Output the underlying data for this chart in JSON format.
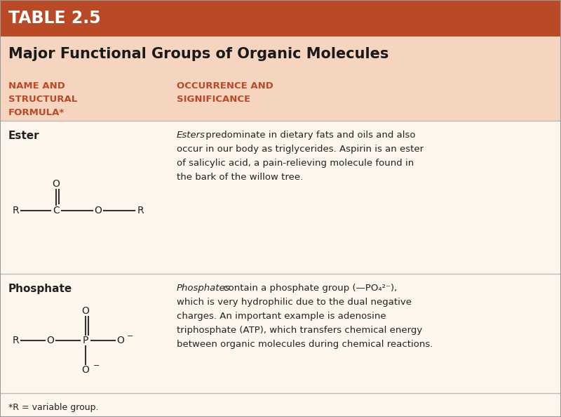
{
  "title_banner_text": "TABLE 2.5",
  "title_banner_color": "#b94a25",
  "title_banner_text_color": "#ffffff",
  "main_title": "Major Functional Groups of Organic Molecules",
  "main_title_color": "#1a1a1a",
  "header_col1_lines": [
    "NAME AND",
    "STRUCTURAL",
    "FORMULA*"
  ],
  "header_col2_lines": [
    "OCCURRENCE AND",
    "SIGNIFICANCE"
  ],
  "header_text_color": "#b94a25",
  "background_color": "#fdf6ec",
  "title_bg_color": "#f5d5c0",
  "header_bg_color": "#f5d5c0",
  "divider_color": "#bbbbbb",
  "row1_name": "Ester",
  "row2_name": "Phosphate",
  "footnote": "*R = variable group.",
  "col_split": 0.3,
  "row1_italic": "Esters",
  "row1_rest": " predominate in dietary fats and oils and also",
  "row1_lines": [
    "occur in our body as triglycerides. Aspirin is an ester",
    "of salicylic acid, a pain-relieving molecule found in",
    "the bark of the willow tree."
  ],
  "row2_italic": "Phosphates",
  "row2_rest": " contain a phosphate group (—PO₄²⁻),",
  "row2_lines": [
    "which is very hydrophilic due to the dual negative",
    "charges. An important example is adenosine",
    "triphosphate (ATP), which transfers chemical energy",
    "between organic molecules during chemical reactions."
  ],
  "text_color": "#222222",
  "formula_color": "#333333"
}
